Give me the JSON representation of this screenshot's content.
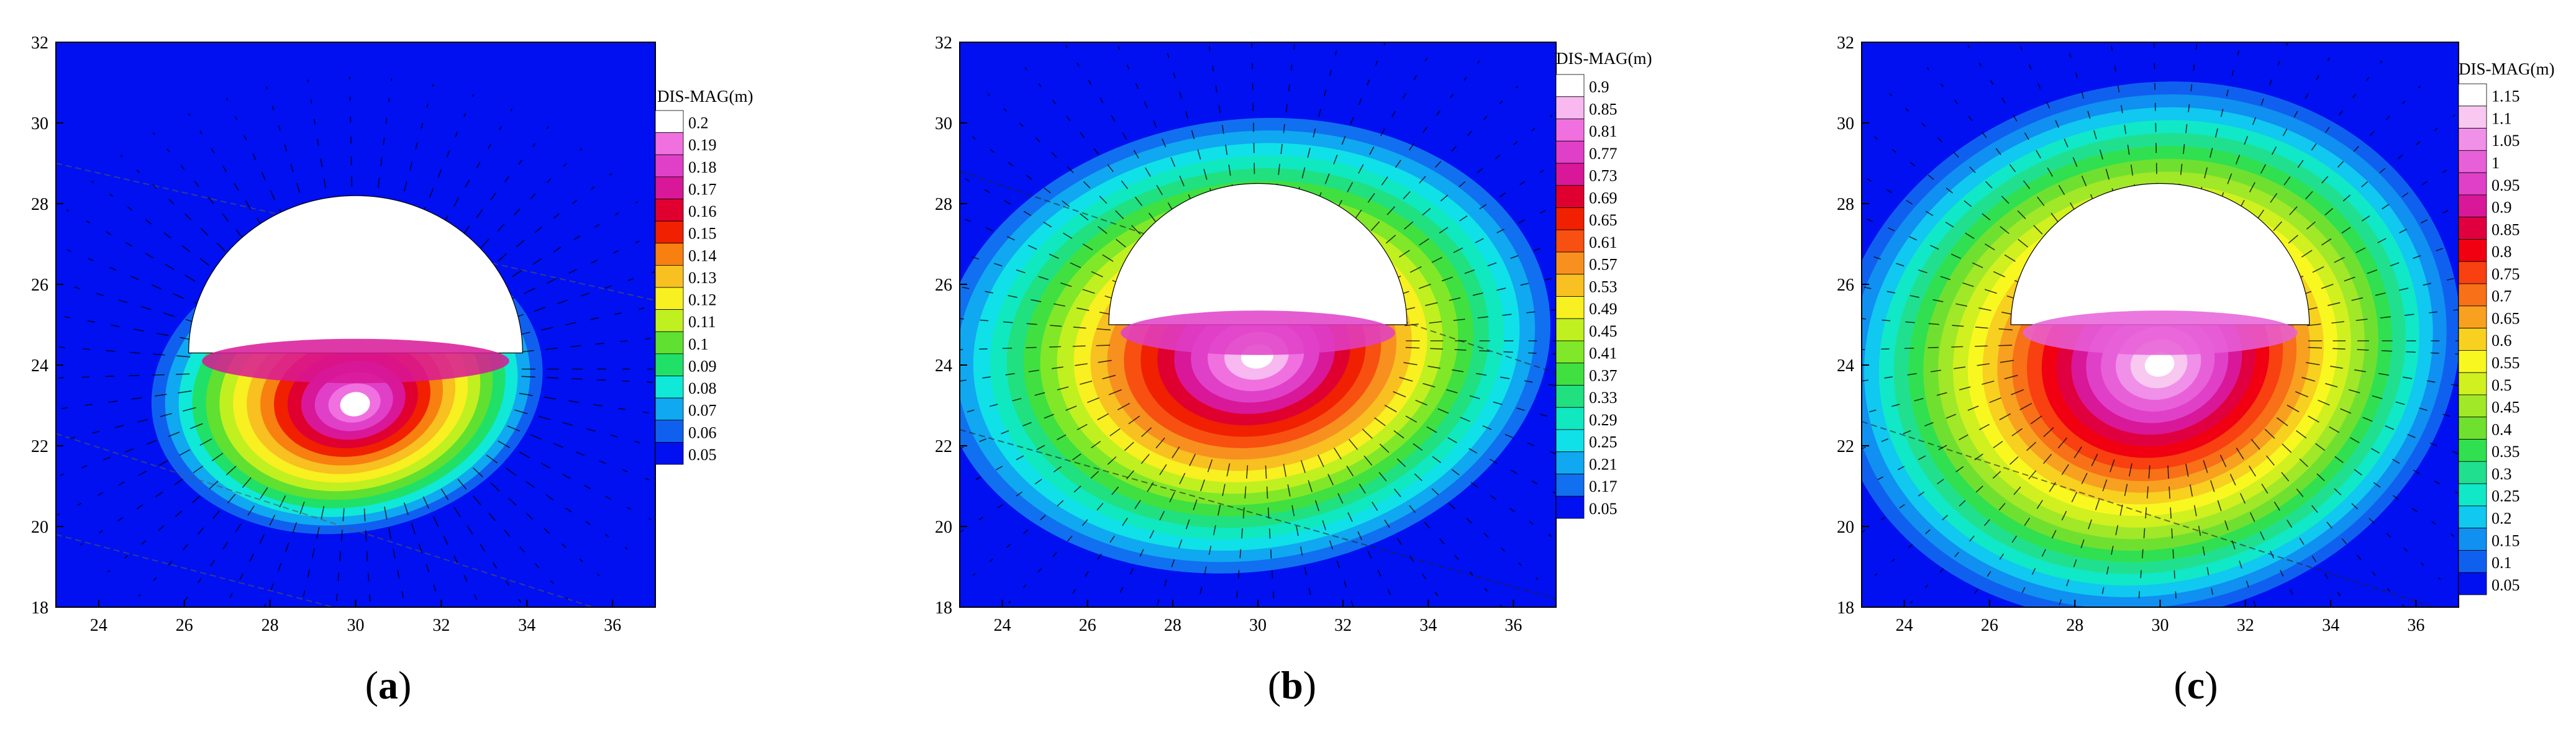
{
  "figure": {
    "panels": [
      {
        "label": "(a)",
        "label_parts": [
          "(",
          "a",
          ")"
        ]
      },
      {
        "label": "(b)",
        "label_parts": [
          "(",
          "b",
          ")"
        ]
      },
      {
        "label": "(c)",
        "label_parts": [
          "(",
          "c",
          ")"
        ]
      }
    ]
  },
  "chart_data": [
    {
      "type": "heatmap",
      "panel_label": "(a)",
      "legend_title": "DIS-MAG(m)",
      "legend_levels": [
        "0.2",
        "0.19",
        "0.18",
        "0.17",
        "0.16",
        "0.15",
        "0.14",
        "0.13",
        "0.12",
        "0.11",
        "0.1",
        "0.09",
        "0.08",
        "0.07",
        "0.06",
        "0.05"
      ],
      "legend_colors": [
        "#ffffff",
        "#f070e0",
        "#e040c8",
        "#d81898",
        "#e00030",
        "#f02000",
        "#f88010",
        "#f8c020",
        "#f8f020",
        "#c0f020",
        "#60e030",
        "#20e068",
        "#10e8d8",
        "#10a8f0",
        "#1060f0",
        "#0010f0"
      ],
      "x_ticks": [
        "24",
        "26",
        "28",
        "30",
        "32",
        "34",
        "36"
      ],
      "y_ticks": [
        "18",
        "20",
        "22",
        "24",
        "26",
        "28",
        "30",
        "32"
      ],
      "xlim": [
        23,
        37
      ],
      "ylim": [
        18,
        32
      ],
      "grid": false,
      "tunnel": {
        "cx": 30,
        "cy": 24.3,
        "r": 3.9
      },
      "field": {
        "peak_value": 0.2,
        "peak_location": [
          30,
          23.0
        ],
        "background_value": 0.05
      }
    },
    {
      "type": "heatmap",
      "panel_label": "(b)",
      "legend_title": "DIS-MAG(m)",
      "legend_levels": [
        "0.9",
        "0.85",
        "0.81",
        "0.77",
        "0.73",
        "0.69",
        "0.65",
        "0.61",
        "0.57",
        "0.53",
        "0.49",
        "0.45",
        "0.41",
        "0.37",
        "0.33",
        "0.29",
        "0.25",
        "0.21",
        "0.17",
        "0.05"
      ],
      "legend_colors": [
        "#ffffff",
        "#f8b8f0",
        "#f070e0",
        "#e040c8",
        "#d81898",
        "#e00030",
        "#f02000",
        "#f85010",
        "#f89020",
        "#f8c020",
        "#f8f020",
        "#c0f020",
        "#80e828",
        "#40e040",
        "#20e080",
        "#10e8c0",
        "#10e0e8",
        "#10a8f0",
        "#1070f0",
        "#0010f0"
      ],
      "x_ticks": [
        "24",
        "26",
        "28",
        "30",
        "32",
        "34",
        "36"
      ],
      "y_ticks": [
        "18",
        "20",
        "22",
        "24",
        "26",
        "28",
        "30",
        "32"
      ],
      "xlim": [
        23,
        37
      ],
      "ylim": [
        18,
        32
      ],
      "grid": false,
      "tunnel": {
        "cx": 30,
        "cy": 25.0,
        "r": 3.5
      },
      "field": {
        "peak_value": 0.9,
        "peak_location": [
          30,
          24.2
        ],
        "background_value": 0.05
      }
    },
    {
      "type": "heatmap",
      "panel_label": "(c)",
      "legend_title": "DIS-MAG(m)",
      "legend_levels": [
        "1.15",
        "1.1",
        "1.05",
        "1",
        "0.95",
        "0.9",
        "0.85",
        "0.8",
        "0.75",
        "0.7",
        "0.65",
        "0.6",
        "0.55",
        "0.5",
        "0.45",
        "0.4",
        "0.35",
        "0.3",
        "0.25",
        "0.2",
        "0.15",
        "0.1",
        "0.05"
      ],
      "legend_colors": [
        "#ffffff",
        "#f8c8f0",
        "#f090e8",
        "#e860d8",
        "#e040c8",
        "#d81898",
        "#e00040",
        "#f00010",
        "#f84010",
        "#f87018",
        "#f8a020",
        "#f8d020",
        "#f8f820",
        "#d0f020",
        "#a0e828",
        "#70e030",
        "#30e050",
        "#20e090",
        "#10e8c8",
        "#10c8f0",
        "#1090f0",
        "#1060f0",
        "#0010f0"
      ],
      "x_ticks": [
        "24",
        "26",
        "28",
        "30",
        "32",
        "34",
        "36"
      ],
      "y_ticks": [
        "18",
        "20",
        "22",
        "24",
        "26",
        "28",
        "30",
        "32"
      ],
      "xlim": [
        23,
        37
      ],
      "ylim": [
        18,
        32
      ],
      "grid": false,
      "tunnel": {
        "cx": 30,
        "cy": 25.0,
        "r": 3.5
      },
      "field": {
        "peak_value": 1.15,
        "peak_location": [
          30,
          24.0
        ],
        "background_value": 0.05
      }
    }
  ]
}
